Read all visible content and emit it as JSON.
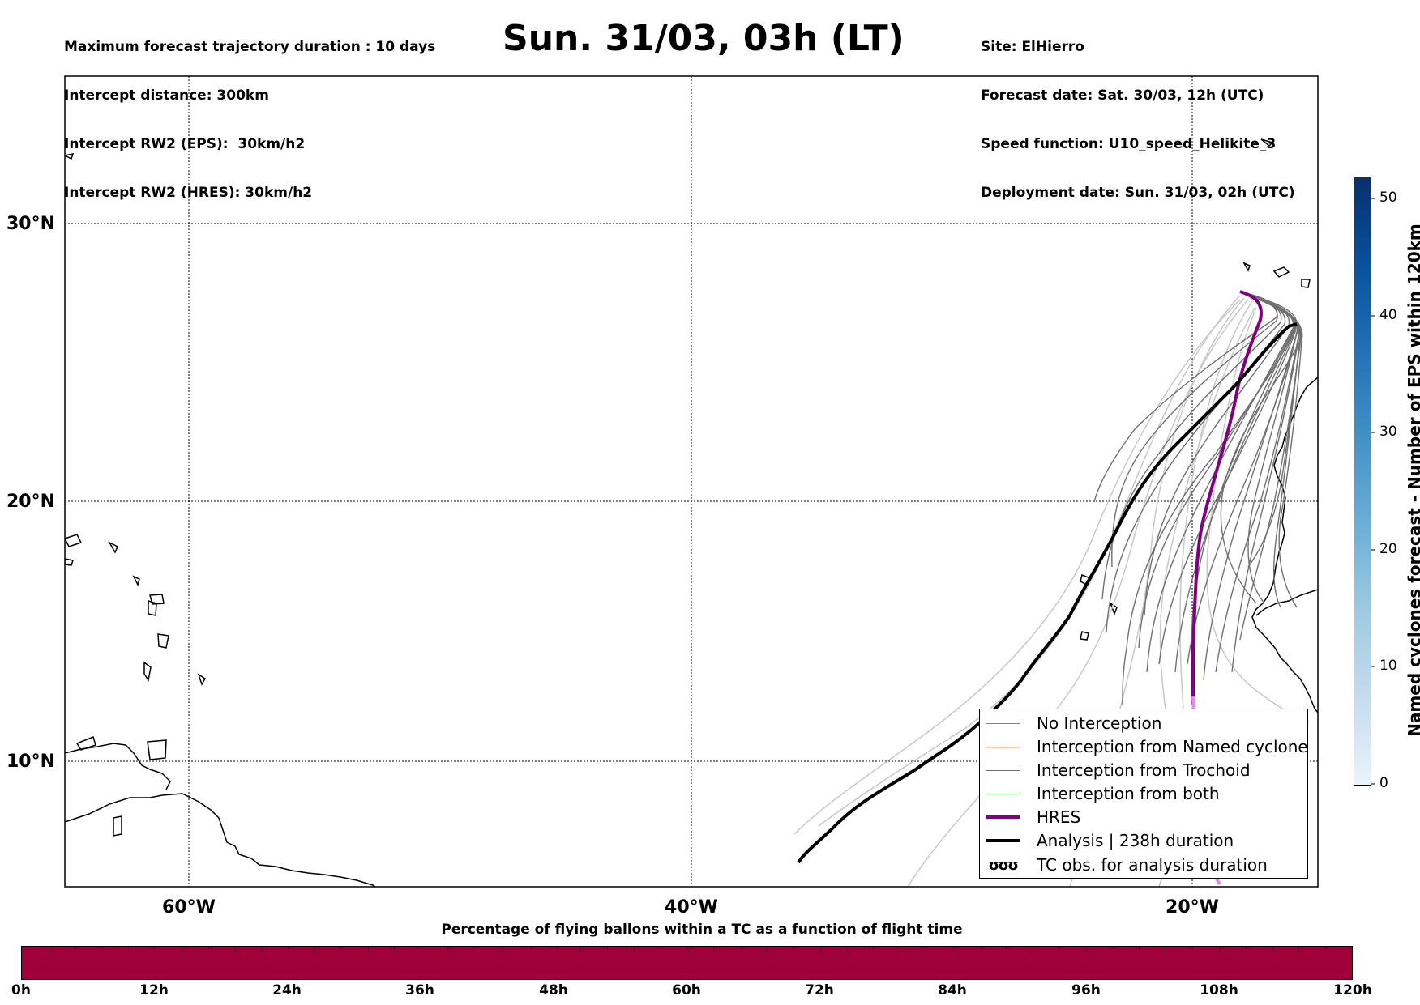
{
  "header": {
    "left_lines": [
      "Maximum forecast trajectory duration : 10 days",
      "Intercept distance: 300km",
      "Intercept RW2 (EPS):  30km/h2",
      "Intercept RW2 (HRES): 30km/h2"
    ],
    "title": "Sun. 31/03, 03h (LT)",
    "right_lines": [
      "Site: ElHierro",
      "Forecast date: Sat. 30/03, 12h (UTC)",
      "Speed function: U10_speed_Helikite_3",
      "Deployment date: Sun. 31/03, 02h (UTC)"
    ]
  },
  "map": {
    "lat_labels": [
      "30°N",
      "20°N",
      "10°N"
    ],
    "lon_labels": [
      "60°W",
      "40°W",
      "20°W"
    ]
  },
  "legend": {
    "items": [
      {
        "label": "No Interception",
        "color": "#808080"
      },
      {
        "label": "Interception from Named cyclone",
        "color": "#e8551c"
      },
      {
        "label": "Interception from Trochoid",
        "color": "#7a7a18"
      },
      {
        "label": "Interception from both",
        "color": "#2e8b2e"
      },
      {
        "label": "HRES",
        "color": "#800080"
      },
      {
        "label": "Analysis | 238h duration",
        "color": "#000000"
      },
      {
        "label": "TC obs. for analysis duration",
        "symbol": "ʊʊʊ"
      }
    ]
  },
  "colorbar": {
    "title": "Named cyclones forecast - Number of EPS within 120km",
    "ticks": [
      "0",
      "10",
      "20",
      "30",
      "40",
      "50"
    ]
  },
  "percentage_bar": {
    "title": "Percentage of flying ballons within a TC as a function of flight time",
    "ticks": [
      "0h",
      "12h",
      "24h",
      "36h",
      "48h",
      "60h",
      "72h",
      "84h",
      "96h",
      "108h",
      "120h"
    ],
    "color": "#a0003a"
  }
}
